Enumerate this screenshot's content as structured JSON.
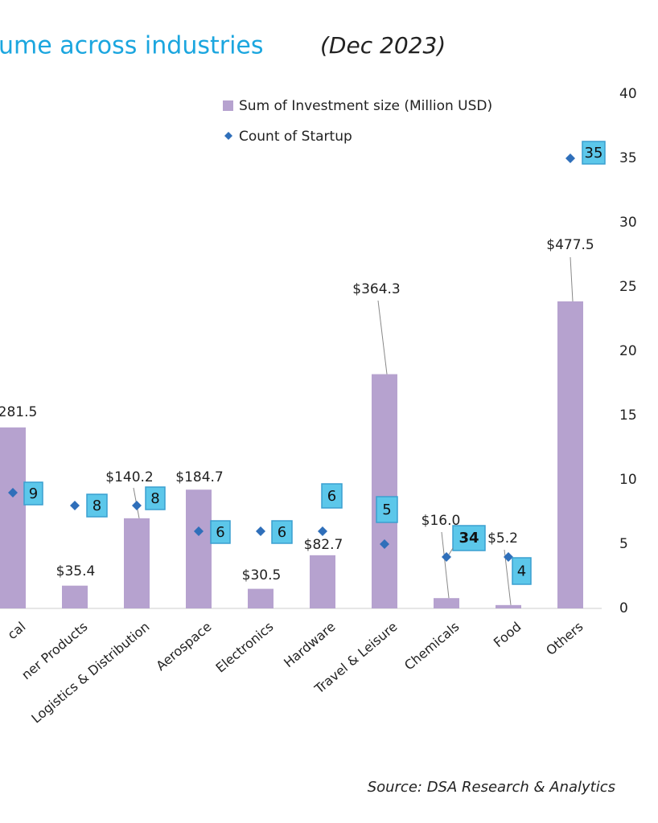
{
  "chart_data": {
    "type": "bar",
    "title": "ume across industries",
    "subtitle": "(Dec 2023)",
    "source": "Source: DSA Research & Analytics",
    "categories": [
      "cal",
      "ner Products",
      "Logistics & Distribution",
      "Aerospace",
      "Electronics",
      "Hardware",
      "Travel & Leisure",
      "Chemicals",
      "Food",
      "Others"
    ],
    "series": [
      {
        "name": "Sum of Investment size (Million USD)",
        "type": "bar",
        "color": "#b6a2cf",
        "values": [
          281.5,
          35.4,
          140.2,
          184.7,
          30.5,
          82.7,
          364.3,
          16.0,
          5.2,
          477.5
        ],
        "value_labels": [
          "281.5",
          "$35.4",
          "$140.2",
          "$184.7",
          "$30.5",
          "$82.7",
          "$364.3",
          "$16.0",
          "$5.2",
          "$477.5"
        ]
      },
      {
        "name": "Count of Startup",
        "type": "scatter",
        "axis": "y2",
        "color": "#2f6fba",
        "values": [
          9,
          8,
          8,
          6,
          6,
          6,
          5,
          4,
          4,
          35
        ],
        "value_labels": [
          "9",
          "8",
          "8",
          "6",
          "6",
          "6",
          "5",
          null,
          "4",
          "35"
        ]
      }
    ],
    "annotations": [
      "34"
    ],
    "ylim": [
      0,
      800
    ],
    "y2lim": [
      0,
      40
    ],
    "y2ticks": [
      0,
      5,
      10,
      15,
      20,
      25,
      30,
      35,
      40
    ],
    "legend": "top-right"
  }
}
